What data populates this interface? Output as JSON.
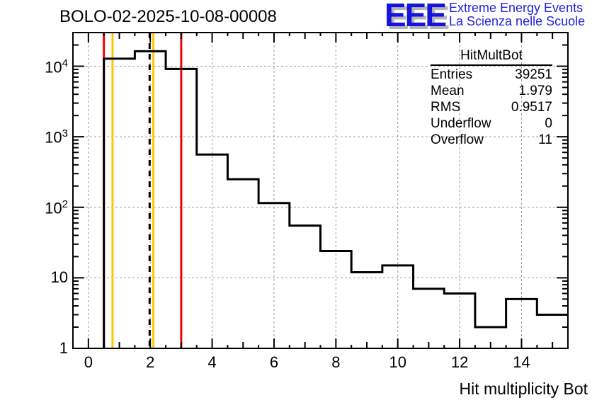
{
  "header": {
    "title": "BOLO-02-2025-10-08-00008"
  },
  "logo": {
    "letters": "EEE",
    "line1": "Extreme Energy Events",
    "line2": "La Scienza nelle Scuole",
    "letters_color": "#1414dd",
    "text_color": "#2323dd",
    "shadow_color": "#b5b5b5"
  },
  "stats_box": {
    "title": "HitMultBot",
    "rows": [
      {
        "label": "Entries",
        "value": "39251"
      },
      {
        "label": "Mean",
        "value": "1.979"
      },
      {
        "label": "RMS",
        "value": "0.9517"
      },
      {
        "label": "Underflow",
        "value": "0"
      },
      {
        "label": "Overflow",
        "value": "11"
      }
    ]
  },
  "chart_data": {
    "type": "bar",
    "title": "BOLO-02-2025-10-08-00008",
    "xlabel": "Hit multiplicity Bot",
    "ylabel": "",
    "yscale": "log",
    "xlim": [
      -0.5,
      15.5
    ],
    "ylim": [
      1,
      30000
    ],
    "grid": true,
    "bin_width": 1,
    "categories": [
      1,
      2,
      3,
      4,
      5,
      6,
      7,
      8,
      9,
      10,
      11,
      12,
      13,
      14,
      15
    ],
    "values": [
      12800,
      16300,
      9150,
      560,
      250,
      115,
      55,
      24,
      12,
      15,
      7,
      6,
      2,
      5,
      3
    ],
    "x_ticks": {
      "labeled_values": [
        0,
        2,
        4,
        6,
        8,
        10,
        12,
        14
      ],
      "labels": [
        "0",
        "2",
        "4",
        "6",
        "8",
        "10",
        "12",
        "14"
      ]
    },
    "y_ticks": {
      "decade_values": [
        1,
        10,
        100,
        1000,
        10000
      ],
      "labels": [
        {
          "base": "1",
          "exp": ""
        },
        {
          "base": "10",
          "exp": ""
        },
        {
          "base": "10",
          "exp": "2"
        },
        {
          "base": "10",
          "exp": "3"
        },
        {
          "base": "10",
          "exp": "4"
        }
      ]
    },
    "overlay_lines": [
      {
        "x": 0.5,
        "color": "#ee0000",
        "style": "solid",
        "name": "red-marker-left"
      },
      {
        "x": 0.78,
        "color": "#ffc800",
        "style": "solid",
        "name": "yellow-marker-left"
      },
      {
        "x": 2.1,
        "color": "#ffc800",
        "style": "solid",
        "name": "yellow-marker-right"
      },
      {
        "x": 3.0,
        "color": "#ee0000",
        "style": "solid",
        "name": "red-marker-right"
      },
      {
        "x": 1.979,
        "color": "#000000",
        "style": "dashed",
        "name": "mean-dashed-line"
      }
    ],
    "line_color": "#000000",
    "grid_color": "#999999",
    "legend": "none"
  }
}
